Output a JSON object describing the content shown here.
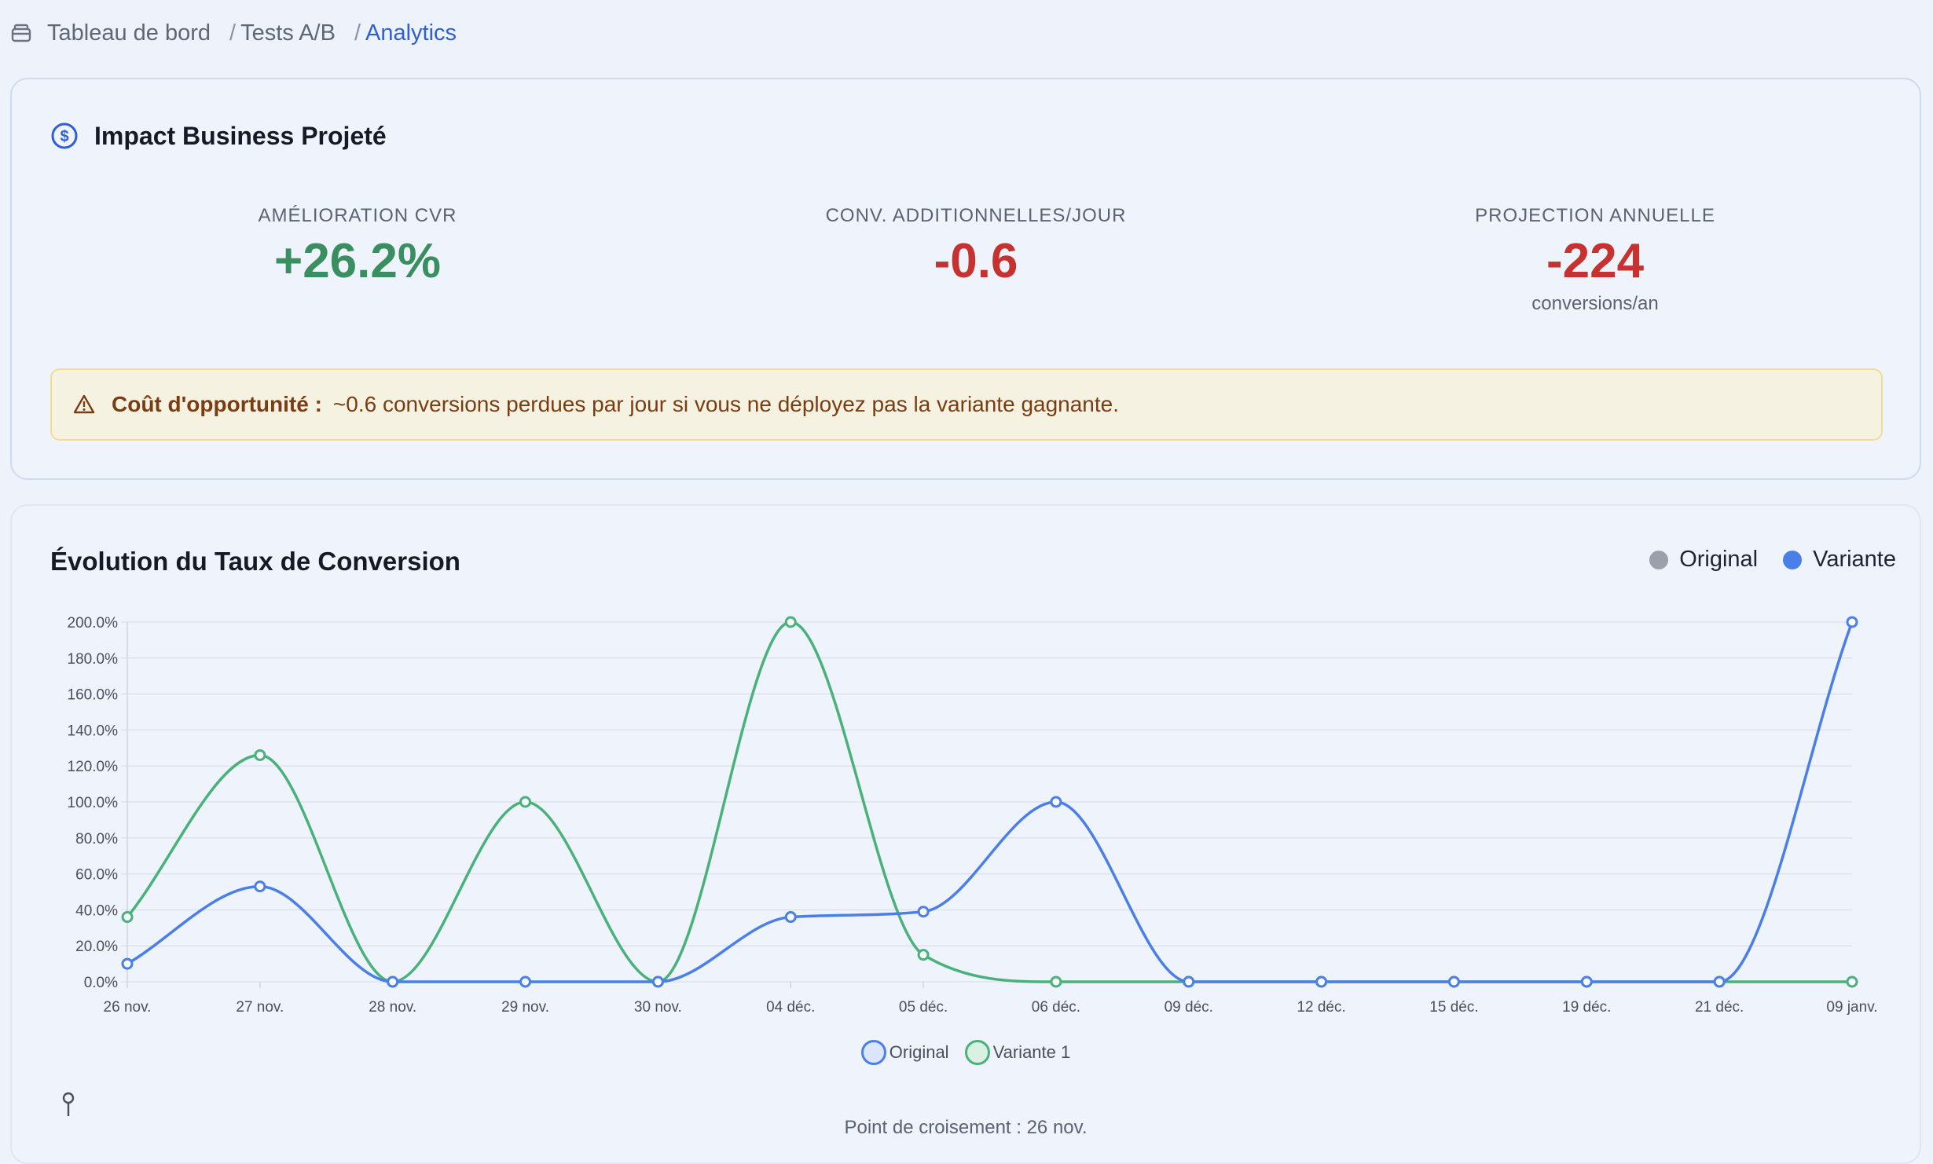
{
  "breadcrumb": {
    "items": [
      "Tableau de bord",
      "Tests A/B",
      "Analytics"
    ]
  },
  "impact": {
    "title": "Impact Business Projeté",
    "metrics": [
      {
        "label": "AMÉLIORATION CVR",
        "value": "+26.2%",
        "sub": "",
        "color": "#3a8f60"
      },
      {
        "label": "CONV. ADDITIONNELLES/JOUR",
        "value": "-0.6",
        "sub": "",
        "color": "#c5322f"
      },
      {
        "label": "PROJECTION ANNUELLE",
        "value": "-224",
        "sub": "conversions/an",
        "color": "#c5322f"
      }
    ],
    "warning": {
      "label": "Coût d'opportunité :",
      "text": "~0.6 conversions perdues par jour si vous ne déployez pas la variante gagnante."
    }
  },
  "chart_card": {
    "title": "Évolution du Taux de Conversion",
    "top_legend": [
      {
        "label": "Original",
        "color": "#9ca0aa"
      },
      {
        "label": "Variante",
        "color": "#4a7ee8"
      }
    ],
    "crossing_text": "Point de croisement : 26 nov."
  },
  "chart_data": {
    "type": "line",
    "categories": [
      "26 nov.",
      "27 nov.",
      "28 nov.",
      "29 nov.",
      "30 nov.",
      "04 déc.",
      "05 déc.",
      "06 déc.",
      "09 déc.",
      "12 déc.",
      "15 déc.",
      "19 déc.",
      "21 déc.",
      "09 janv."
    ],
    "y_ticks": [
      "0.0%",
      "20.0%",
      "40.0%",
      "60.0%",
      "80.0%",
      "100.0%",
      "120.0%",
      "140.0%",
      "160.0%",
      "180.0%",
      "200.0%"
    ],
    "ylim": [
      0,
      200
    ],
    "grid": true,
    "legend_position": "bottom",
    "series": [
      {
        "name": "Original",
        "color": "#4a7ee8",
        "values": [
          10,
          53,
          0,
          0,
          0,
          36,
          39,
          100,
          0,
          0,
          0,
          0,
          0,
          200
        ]
      },
      {
        "name": "Variante 1",
        "color": "#49b27a",
        "values": [
          36,
          126,
          0,
          100,
          0,
          200,
          15,
          0,
          0,
          0,
          0,
          0,
          0,
          0
        ]
      }
    ]
  }
}
